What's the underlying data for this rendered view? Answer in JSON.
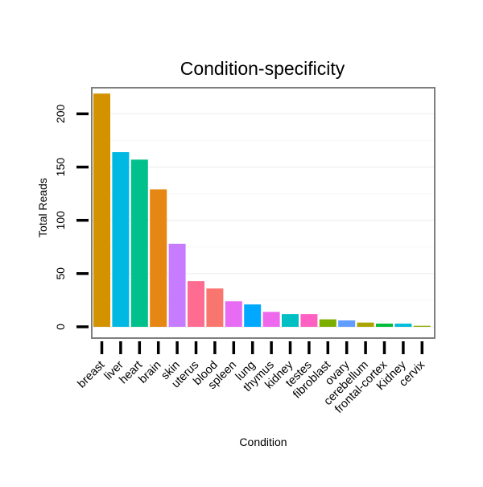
{
  "chart_data": {
    "type": "bar",
    "title": "Condition-specificity",
    "xlabel": "Condition",
    "ylabel": "Total Reads",
    "ylim": [
      -10,
      225
    ],
    "yticks": [
      0,
      50,
      100,
      150,
      200
    ],
    "grid": true,
    "legend": "none",
    "categories": [
      "breast",
      "liver",
      "heart",
      "brain",
      "skin",
      "uterus",
      "blood",
      "spleen",
      "lung",
      "thymus",
      "kidney",
      "testes",
      "fibroblast",
      "ovary",
      "cerebellum",
      "frontal-cortex",
      "Kidney",
      "cervix"
    ],
    "values": [
      219,
      164,
      157,
      129,
      78,
      43,
      36,
      24,
      21,
      14,
      12,
      12,
      7,
      6,
      4,
      3,
      3,
      1
    ],
    "colors": [
      "#D39200",
      "#00B9E3",
      "#00C08B",
      "#E68613",
      "#C77CFF",
      "#FF6C91",
      "#F8766D",
      "#E76BF3",
      "#00A9FF",
      "#ED68ED",
      "#00BFC4",
      "#FF61C3",
      "#7CAE00",
      "#619CFF",
      "#ABA300",
      "#00BA38",
      "#00BCD8",
      "#93AA00"
    ]
  }
}
